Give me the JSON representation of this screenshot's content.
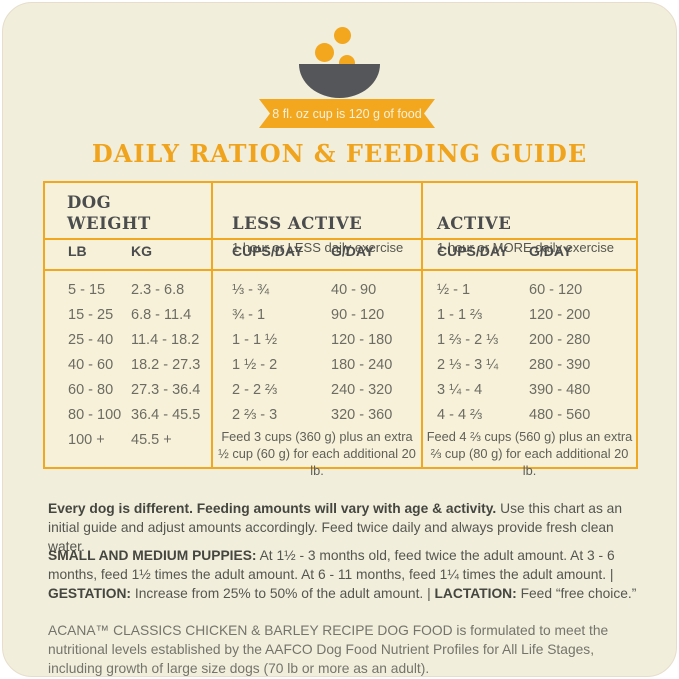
{
  "colors": {
    "accent_orange": "#F0A61E",
    "bowl_gray": "#54565A",
    "card_background": "#F1EEDC",
    "table_background": "#F6F1D8"
  },
  "ribbon": {
    "text": "8 fl. oz cup is 120 g of food"
  },
  "title": "DAILY RATION & FEEDING GUIDE",
  "table": {
    "weight": {
      "header": "DOG\nWEIGHT",
      "columns": [
        "LB",
        "KG"
      ],
      "rows": [
        [
          "5 - 15",
          "2.3 - 6.8"
        ],
        [
          "15 - 25",
          "6.8 - 11.4"
        ],
        [
          "25 - 40",
          "11.4 - 18.2"
        ],
        [
          "40 - 60",
          "18.2 - 27.3"
        ],
        [
          "60 - 80",
          "27.3 - 36.4"
        ],
        [
          "80 - 100",
          "36.4 - 45.5"
        ],
        [
          "100 +",
          "45.5 +"
        ]
      ]
    },
    "groups": [
      {
        "title": "LESS ACTIVE",
        "subtitle": "1 hour or LESS daily exercise",
        "columns": [
          "CUPS/DAY",
          "G/DAY"
        ],
        "rows": [
          [
            "⅓ - ¾",
            "40 - 90"
          ],
          [
            "¾ - 1",
            "90 - 120"
          ],
          [
            "1 - 1 ½",
            "120 - 180"
          ],
          [
            "1 ½ - 2",
            "180 - 240"
          ],
          [
            "2 - 2 ⅔",
            "240 - 320"
          ],
          [
            "2 ⅔ - 3",
            "320 - 360"
          ]
        ],
        "note": "Feed 3 cups (360 g) plus an extra ½ cup (60 g) for each additional 20 lb."
      },
      {
        "title": "ACTIVE",
        "subtitle": "1 hour or MORE daily exercise",
        "columns": [
          "CUPS/DAY",
          "G/DAY"
        ],
        "rows": [
          [
            "½ - 1",
            "60 - 120"
          ],
          [
            "1 - 1 ⅔",
            "120 - 200"
          ],
          [
            "1 ⅔ - 2 ⅓",
            "200 - 280"
          ],
          [
            "2 ⅓ - 3 ¼",
            "280 - 390"
          ],
          [
            "3 ¼ - 4",
            "390 - 480"
          ],
          [
            "4 - 4 ⅔",
            "480 - 560"
          ]
        ],
        "note": "Feed 4 ⅔ cups (560 g) plus an extra ⅔ cup (80 g) for each additional 20 lb."
      }
    ]
  },
  "footnotes": {
    "p1_bold": "Every dog is different. Feeding amounts will vary with age & activity.",
    "p1_rest": " Use this chart as an initial guide and adjust amounts accordingly. Feed twice daily and always provide fresh clean water.",
    "p2_b1": "SMALL AND MEDIUM PUPPIES:",
    "p2_t1": " At 1½ - 3 months old, feed twice the adult amount. At 3 - 6 months, feed 1½ times the adult amount. At 6 - 11 months, feed 1¼ times the adult amount.  |  ",
    "p2_b2": "GESTATION:",
    "p2_t2": " Increase from 25% to 50% of the adult amount.  |  ",
    "p2_b3": "LACTATION:",
    "p2_t3": " Feed “free choice.”",
    "p3": "ACANA™ CLASSICS CHICKEN & BARLEY RECIPE DOG FOOD is formulated to meet the nutritional levels established by the AAFCO Dog Food Nutrient Profiles for All Life Stages, including growth of large size dogs (70 lb or more as an adult)."
  }
}
